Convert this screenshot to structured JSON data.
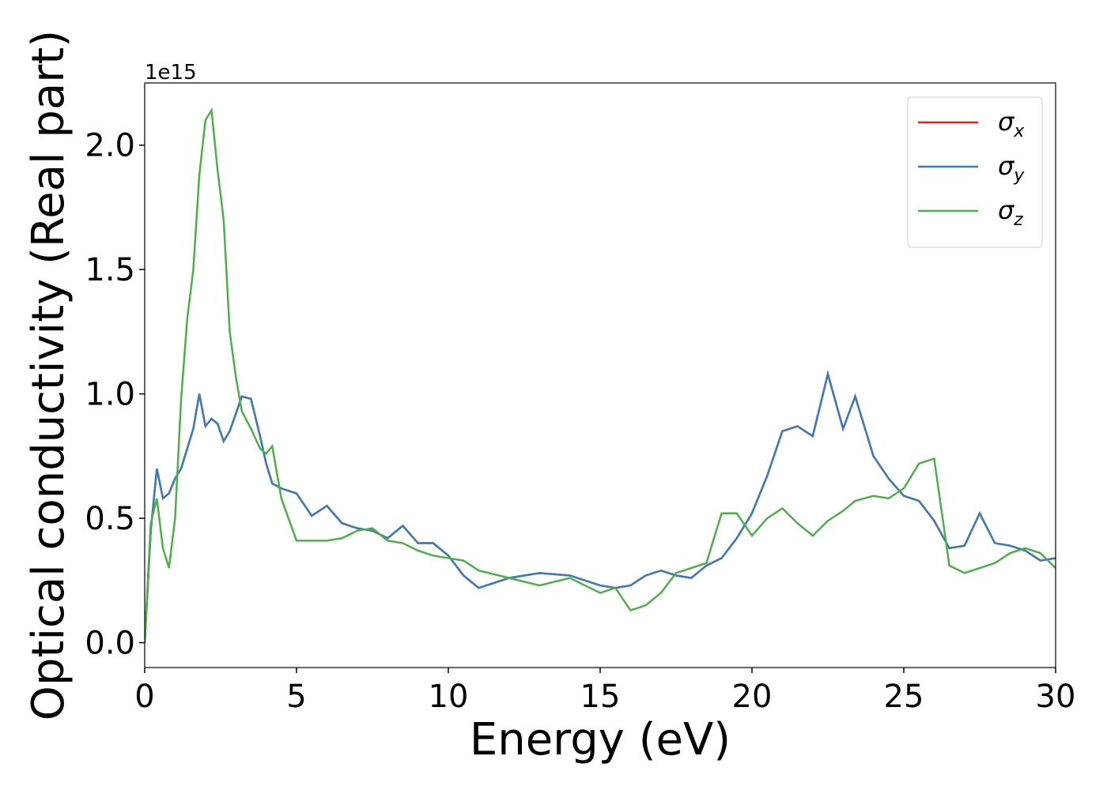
{
  "chart_data": {
    "type": "line",
    "xlabel": "Energy (eV)",
    "ylabel": "Optical conductivity (Real part)",
    "y_offset_label": "1e15",
    "x": [
      0,
      0.2,
      0.4,
      0.6,
      0.8,
      1.0,
      1.2,
      1.4,
      1.6,
      1.8,
      2.0,
      2.2,
      2.4,
      2.6,
      2.8,
      3.0,
      3.2,
      3.5,
      3.8,
      4.0,
      4.2,
      4.5,
      5.0,
      5.5,
      6.0,
      6.5,
      7.0,
      7.5,
      8.0,
      8.5,
      9.0,
      9.5,
      10,
      10.5,
      11,
      12,
      13,
      14,
      15,
      15.5,
      16,
      16.5,
      17,
      17.5,
      18,
      18.5,
      19,
      19.5,
      20,
      20.5,
      21,
      21.5,
      22,
      22.5,
      23,
      23.4,
      24,
      24.5,
      25,
      25.5,
      26,
      26.5,
      27,
      27.5,
      28,
      28.5,
      29,
      29.5,
      30
    ],
    "series": [
      {
        "name": "σx",
        "color": "#e41a1c",
        "values": [
          0,
          0.45,
          0.7,
          0.58,
          0.6,
          0.66,
          0.7,
          0.78,
          0.86,
          1.0,
          0.87,
          0.9,
          0.88,
          0.81,
          0.85,
          0.92,
          0.99,
          0.98,
          0.83,
          0.72,
          0.64,
          0.62,
          0.6,
          0.51,
          0.55,
          0.48,
          0.46,
          0.45,
          0.42,
          0.47,
          0.4,
          0.4,
          0.35,
          0.27,
          0.22,
          0.26,
          0.28,
          0.27,
          0.23,
          0.22,
          0.23,
          0.27,
          0.29,
          0.27,
          0.26,
          0.31,
          0.34,
          0.42,
          0.52,
          0.67,
          0.85,
          0.87,
          0.83,
          1.08,
          0.86,
          0.99,
          0.75,
          0.66,
          0.59,
          0.57,
          0.49,
          0.38,
          0.39,
          0.52,
          0.4,
          0.39,
          0.37,
          0.33,
          0.34
        ]
      },
      {
        "name": "σy",
        "color": "#377eb8",
        "values": [
          0,
          0.45,
          0.7,
          0.58,
          0.6,
          0.66,
          0.7,
          0.78,
          0.86,
          1.0,
          0.87,
          0.9,
          0.88,
          0.81,
          0.85,
          0.92,
          0.99,
          0.98,
          0.83,
          0.72,
          0.64,
          0.62,
          0.6,
          0.51,
          0.55,
          0.48,
          0.46,
          0.45,
          0.42,
          0.47,
          0.4,
          0.4,
          0.35,
          0.27,
          0.22,
          0.26,
          0.28,
          0.27,
          0.23,
          0.22,
          0.23,
          0.27,
          0.29,
          0.27,
          0.26,
          0.31,
          0.34,
          0.42,
          0.52,
          0.67,
          0.85,
          0.87,
          0.83,
          1.08,
          0.86,
          0.99,
          0.75,
          0.66,
          0.59,
          0.57,
          0.49,
          0.38,
          0.39,
          0.52,
          0.4,
          0.39,
          0.37,
          0.33,
          0.34
        ]
      },
      {
        "name": "σz",
        "color": "#4daf4a",
        "values": [
          0,
          0.48,
          0.58,
          0.38,
          0.3,
          0.5,
          0.98,
          1.3,
          1.5,
          1.88,
          2.1,
          2.14,
          1.9,
          1.7,
          1.25,
          1.07,
          0.93,
          0.86,
          0.78,
          0.76,
          0.79,
          0.58,
          0.41,
          0.41,
          0.41,
          0.42,
          0.45,
          0.46,
          0.41,
          0.4,
          0.37,
          0.35,
          0.34,
          0.33,
          0.29,
          0.26,
          0.23,
          0.26,
          0.2,
          0.22,
          0.13,
          0.15,
          0.2,
          0.28,
          0.3,
          0.32,
          0.52,
          0.52,
          0.43,
          0.5,
          0.54,
          0.48,
          0.43,
          0.49,
          0.53,
          0.57,
          0.59,
          0.58,
          0.62,
          0.72,
          0.74,
          0.31,
          0.28,
          0.3,
          0.32,
          0.36,
          0.38,
          0.36,
          0.3
        ]
      }
    ],
    "xlim": [
      0,
      30
    ],
    "xticks": [
      0,
      5,
      10,
      15,
      20,
      25,
      30
    ],
    "ylim": [
      -0.1,
      2.25
    ],
    "yticks": [
      {
        "value": 0,
        "label": "0.0"
      },
      0.5,
      {
        "value": 1,
        "label": "1.0"
      },
      1.5,
      {
        "value": 2,
        "label": "2.0"
      }
    ],
    "grid": false,
    "legend": "upper right"
  }
}
